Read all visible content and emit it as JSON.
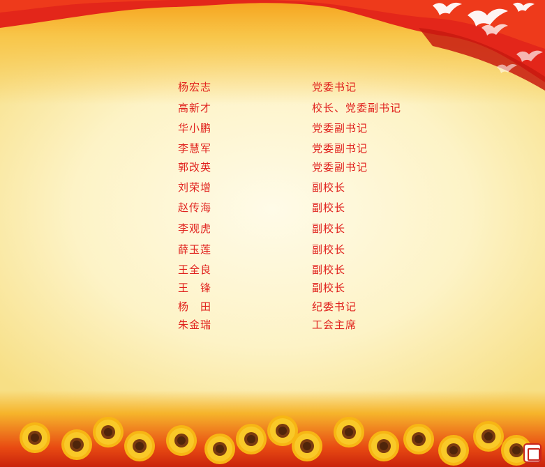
{
  "roster": [
    {
      "name": "杨宏志",
      "title": "党委书记"
    },
    {
      "name": "高新才",
      "title": "校长、党委副书记"
    },
    {
      "name": "华小鹏",
      "title": "党委副书记"
    },
    {
      "name": "李慧军",
      "title": "党委副书记"
    },
    {
      "name": "郭改英",
      "title": "党委副书记"
    },
    {
      "name": "刘荣增",
      "title": "副校长"
    },
    {
      "name": "赵传海",
      "title": "副校长"
    },
    {
      "name": "李观虎",
      "title": "副校长"
    },
    {
      "name": "薛玉莲",
      "title": "副校长"
    },
    {
      "name": "王全良",
      "title": "副校长"
    },
    {
      "name": "王　锋",
      "title": "副校长"
    },
    {
      "name": "杨　田",
      "title": "纪委书记"
    },
    {
      "name": "朱金瑞",
      "title": "工会主席"
    }
  ],
  "colors": {
    "text": "#e0201c",
    "flag": "#e3261a",
    "background": "#fdf3c6",
    "sunflower_petal": "#f7b614",
    "sunflower_center": "#7a3b10"
  },
  "icons": {
    "decoration_top": "red-flag-banner",
    "decoration_corner": "white-doves",
    "decoration_bottom": "sunflower-field",
    "badge": "seal-icon"
  }
}
